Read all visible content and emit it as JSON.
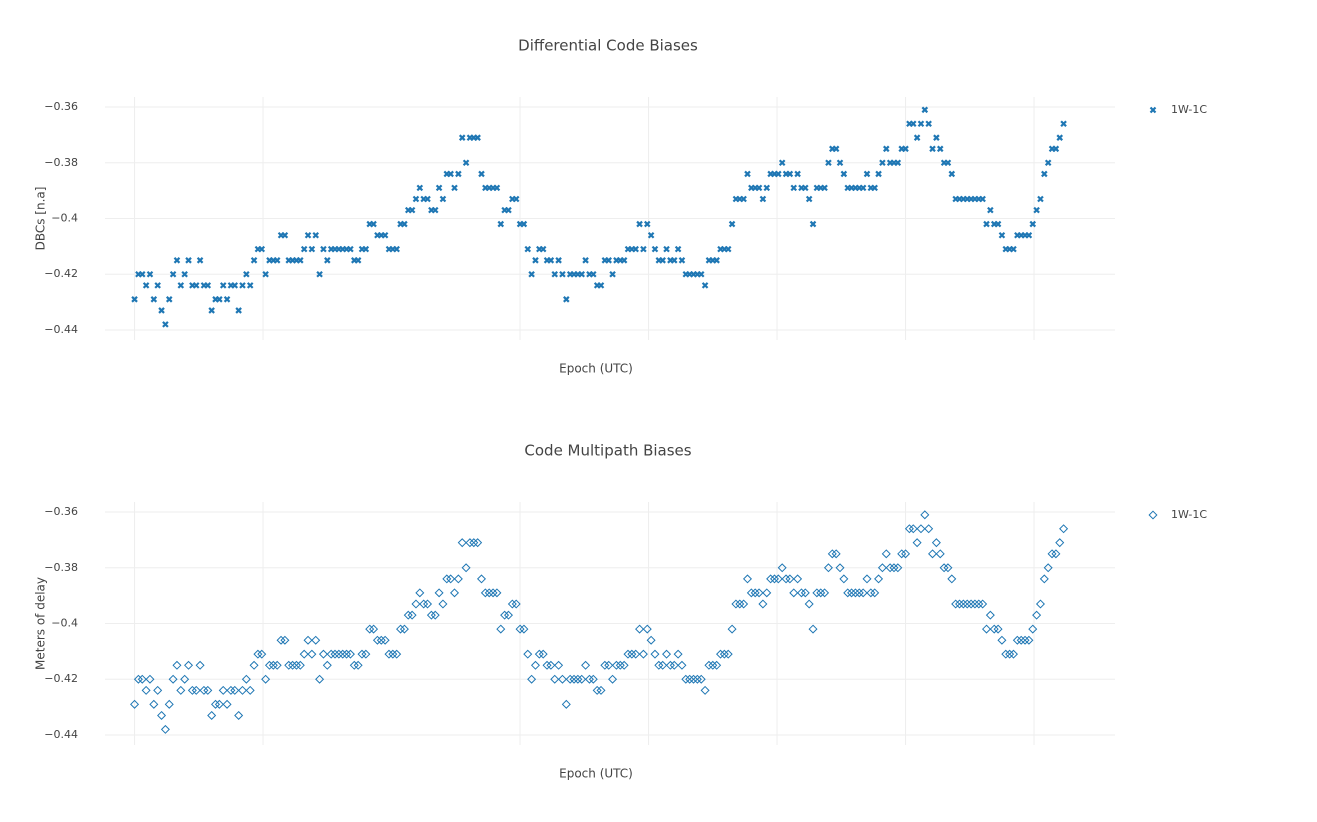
{
  "chart_data": [
    {
      "type": "scatter",
      "title": "Differential Code Biases",
      "xlabel": "Epoch (UTC)",
      "ylabel": "DBCs [n.a]",
      "ylim": [
        -0.4436,
        -0.3564
      ],
      "yticks": [
        {
          "value": -0.36,
          "label": "−0.36"
        },
        {
          "value": -0.38,
          "label": "−0.38"
        },
        {
          "value": -0.4,
          "label": "−0.4"
        },
        {
          "value": -0.42,
          "label": "−0.42"
        },
        {
          "value": -0.44,
          "label": "−0.44"
        }
      ],
      "xlim": [
        -0.23,
        7.63
      ],
      "xticks": [
        0,
        1,
        3,
        4,
        5,
        6,
        7
      ],
      "grid": true,
      "legend": "right",
      "x": [
        0,
        0.03,
        0.06,
        0.09,
        0.12,
        0.15,
        0.18,
        0.21,
        0.24,
        0.27,
        0.3,
        0.33,
        0.36,
        0.39,
        0.42,
        0.45,
        0.48,
        0.51,
        0.54,
        0.57,
        0.6,
        0.63,
        0.66,
        0.69,
        0.72,
        0.75,
        0.78,
        0.81,
        0.84,
        0.87,
        0.9,
        0.93,
        0.96,
        0.99,
        1.02,
        1.05,
        1.08,
        1.11,
        1.14,
        1.17,
        1.2,
        1.23,
        1.26,
        1.29,
        1.32,
        1.35,
        1.38,
        1.41,
        1.44,
        1.47,
        1.5,
        1.53,
        1.56,
        1.59,
        1.62,
        1.65,
        1.68,
        1.71,
        1.74,
        1.77,
        1.8,
        1.83,
        1.86,
        1.89,
        1.92,
        1.95,
        1.98,
        2.01,
        2.04,
        2.07,
        2.1,
        2.13,
        2.16,
        2.19,
        2.22,
        2.25,
        2.28,
        2.31,
        2.34,
        2.37,
        2.4,
        2.43,
        2.46,
        2.49,
        2.52,
        2.55,
        2.58,
        2.61,
        2.64,
        2.67,
        2.7,
        2.73,
        2.76,
        2.79,
        2.82,
        2.85,
        2.88,
        2.91,
        2.94,
        2.97,
        3,
        3.03,
        3.06,
        3.09,
        3.12,
        3.15,
        3.18,
        3.21,
        3.24,
        3.27,
        3.3,
        3.33,
        3.36,
        3.39,
        3.42,
        3.45,
        3.48,
        3.51,
        3.54,
        3.57,
        3.6,
        3.63,
        3.66,
        3.69,
        3.72,
        3.75,
        3.78,
        3.81,
        3.84,
        3.87,
        3.9,
        3.93,
        3.96,
        3.99,
        4.02,
        4.05,
        4.08,
        4.11,
        4.14,
        4.17,
        4.2,
        4.23,
        4.26,
        4.29,
        4.32,
        4.35,
        4.38,
        4.41,
        4.44,
        4.47,
        4.5,
        4.53,
        4.56,
        4.59,
        4.62,
        4.65,
        4.68,
        4.71,
        4.74,
        4.77,
        4.8,
        4.83,
        4.86,
        4.89,
        4.92,
        4.95,
        4.98,
        5.01,
        5.04,
        5.07,
        5.1,
        5.13,
        5.16,
        5.19,
        5.22,
        5.25,
        5.28,
        5.31,
        5.34,
        5.37,
        5.4,
        5.43,
        5.46,
        5.49,
        5.52,
        5.55,
        5.58,
        5.61,
        5.64,
        5.67,
        5.7,
        5.73,
        5.76,
        5.79,
        5.82,
        5.85,
        5.88,
        5.91,
        5.94,
        5.97,
        6,
        6.03,
        6.06,
        6.09,
        6.12,
        6.15,
        6.18,
        6.21,
        6.24,
        6.27,
        6.3,
        6.33,
        6.36,
        6.39,
        6.42,
        6.45,
        6.48,
        6.51,
        6.54,
        6.57,
        6.6,
        6.63,
        6.66,
        6.69,
        6.72,
        6.75,
        6.78,
        6.81,
        6.84,
        6.87,
        6.9,
        6.93,
        6.96,
        6.99,
        7.02,
        7.05,
        7.08,
        7.11,
        7.14,
        7.17,
        7.2,
        7.23
      ],
      "series": [
        {
          "name": "1W-1C",
          "color": "#1f77b4",
          "marker": "x",
          "values": [
            -0.429,
            -0.42,
            -0.42,
            -0.424,
            -0.42,
            -0.429,
            -0.424,
            -0.433,
            -0.438,
            -0.429,
            -0.42,
            -0.415,
            -0.424,
            -0.42,
            -0.415,
            -0.424,
            -0.424,
            -0.415,
            -0.424,
            -0.424,
            -0.433,
            -0.429,
            -0.429,
            -0.424,
            -0.429,
            -0.424,
            -0.424,
            -0.433,
            -0.424,
            -0.42,
            -0.424,
            -0.415,
            -0.411,
            -0.411,
            -0.42,
            -0.415,
            -0.415,
            -0.415,
            -0.406,
            -0.406,
            -0.415,
            -0.415,
            -0.415,
            -0.415,
            -0.411,
            -0.406,
            -0.411,
            -0.406,
            -0.42,
            -0.411,
            -0.415,
            -0.411,
            -0.411,
            -0.411,
            -0.411,
            -0.411,
            -0.411,
            -0.415,
            -0.415,
            -0.411,
            -0.411,
            -0.402,
            -0.402,
            -0.406,
            -0.406,
            -0.406,
            -0.411,
            -0.411,
            -0.411,
            -0.402,
            -0.402,
            -0.397,
            -0.397,
            -0.393,
            -0.389,
            -0.393,
            -0.393,
            -0.397,
            -0.397,
            -0.389,
            -0.393,
            -0.384,
            -0.384,
            -0.389,
            -0.384,
            -0.371,
            -0.38,
            -0.371,
            -0.371,
            -0.371,
            -0.384,
            -0.389,
            -0.389,
            -0.389,
            -0.389,
            -0.402,
            -0.397,
            -0.397,
            -0.393,
            -0.393,
            -0.402,
            -0.402,
            -0.411,
            -0.42,
            -0.415,
            -0.411,
            -0.411,
            -0.415,
            -0.415,
            -0.42,
            -0.415,
            -0.42,
            -0.429,
            -0.42,
            -0.42,
            -0.42,
            -0.42,
            -0.415,
            -0.42,
            -0.42,
            -0.424,
            -0.424,
            -0.415,
            -0.415,
            -0.42,
            -0.415,
            -0.415,
            -0.415,
            -0.411,
            -0.411,
            -0.411,
            -0.402,
            -0.411,
            -0.402,
            -0.406,
            -0.411,
            -0.415,
            -0.415,
            -0.411,
            -0.415,
            -0.415,
            -0.411,
            -0.415,
            -0.42,
            -0.42,
            -0.42,
            -0.42,
            -0.42,
            -0.424,
            -0.415,
            -0.415,
            -0.415,
            -0.411,
            -0.411,
            -0.411,
            -0.402,
            -0.393,
            -0.393,
            -0.393,
            -0.384,
            -0.389,
            -0.389,
            -0.389,
            -0.393,
            -0.389,
            -0.384,
            -0.384,
            -0.384,
            -0.38,
            -0.384,
            -0.384,
            -0.389,
            -0.384,
            -0.389,
            -0.389,
            -0.393,
            -0.402,
            -0.389,
            -0.389,
            -0.389,
            -0.38,
            -0.375,
            -0.375,
            -0.38,
            -0.384,
            -0.389,
            -0.389,
            -0.389,
            -0.389,
            -0.389,
            -0.384,
            -0.389,
            -0.389,
            -0.384,
            -0.38,
            -0.375,
            -0.38,
            -0.38,
            -0.38,
            -0.375,
            -0.375,
            -0.366,
            -0.366,
            -0.371,
            -0.366,
            -0.361,
            -0.366,
            -0.375,
            -0.371,
            -0.375,
            -0.38,
            -0.38,
            -0.384,
            -0.393,
            -0.393,
            -0.393,
            -0.393,
            -0.393,
            -0.393,
            -0.393,
            -0.393,
            -0.402,
            -0.397,
            -0.402,
            -0.402,
            -0.406,
            -0.411,
            -0.411,
            -0.411,
            -0.406,
            -0.406,
            -0.406,
            -0.406,
            -0.402,
            -0.397,
            -0.393,
            -0.384,
            -0.38,
            -0.375,
            -0.375,
            -0.371,
            -0.366
          ]
        }
      ]
    },
    {
      "type": "scatter",
      "title": "Code Multipath Biases",
      "xlabel": "Epoch (UTC)",
      "ylabel": "Meters of delay",
      "ylim": [
        -0.4436,
        -0.3564
      ],
      "yticks": [
        {
          "value": -0.36,
          "label": "−0.36"
        },
        {
          "value": -0.38,
          "label": "−0.38"
        },
        {
          "value": -0.4,
          "label": "−0.4"
        },
        {
          "value": -0.42,
          "label": "−0.42"
        },
        {
          "value": -0.44,
          "label": "−0.44"
        }
      ],
      "xlim": [
        -0.23,
        7.63
      ],
      "xticks": [
        0,
        1,
        3,
        4,
        5,
        6,
        7
      ],
      "grid": true,
      "legend": "right",
      "x": [
        0,
        0.03,
        0.06,
        0.09,
        0.12,
        0.15,
        0.18,
        0.21,
        0.24,
        0.27,
        0.3,
        0.33,
        0.36,
        0.39,
        0.42,
        0.45,
        0.48,
        0.51,
        0.54,
        0.57,
        0.6,
        0.63,
        0.66,
        0.69,
        0.72,
        0.75,
        0.78,
        0.81,
        0.84,
        0.87,
        0.9,
        0.93,
        0.96,
        0.99,
        1.02,
        1.05,
        1.08,
        1.11,
        1.14,
        1.17,
        1.2,
        1.23,
        1.26,
        1.29,
        1.32,
        1.35,
        1.38,
        1.41,
        1.44,
        1.47,
        1.5,
        1.53,
        1.56,
        1.59,
        1.62,
        1.65,
        1.68,
        1.71,
        1.74,
        1.77,
        1.8,
        1.83,
        1.86,
        1.89,
        1.92,
        1.95,
        1.98,
        2.01,
        2.04,
        2.07,
        2.1,
        2.13,
        2.16,
        2.19,
        2.22,
        2.25,
        2.28,
        2.31,
        2.34,
        2.37,
        2.4,
        2.43,
        2.46,
        2.49,
        2.52,
        2.55,
        2.58,
        2.61,
        2.64,
        2.67,
        2.7,
        2.73,
        2.76,
        2.79,
        2.82,
        2.85,
        2.88,
        2.91,
        2.94,
        2.97,
        3,
        3.03,
        3.06,
        3.09,
        3.12,
        3.15,
        3.18,
        3.21,
        3.24,
        3.27,
        3.3,
        3.33,
        3.36,
        3.39,
        3.42,
        3.45,
        3.48,
        3.51,
        3.54,
        3.57,
        3.6,
        3.63,
        3.66,
        3.69,
        3.72,
        3.75,
        3.78,
        3.81,
        3.84,
        3.87,
        3.9,
        3.93,
        3.96,
        3.99,
        4.02,
        4.05,
        4.08,
        4.11,
        4.14,
        4.17,
        4.2,
        4.23,
        4.26,
        4.29,
        4.32,
        4.35,
        4.38,
        4.41,
        4.44,
        4.47,
        4.5,
        4.53,
        4.56,
        4.59,
        4.62,
        4.65,
        4.68,
        4.71,
        4.74,
        4.77,
        4.8,
        4.83,
        4.86,
        4.89,
        4.92,
        4.95,
        4.98,
        5.01,
        5.04,
        5.07,
        5.1,
        5.13,
        5.16,
        5.19,
        5.22,
        5.25,
        5.28,
        5.31,
        5.34,
        5.37,
        5.4,
        5.43,
        5.46,
        5.49,
        5.52,
        5.55,
        5.58,
        5.61,
        5.64,
        5.67,
        5.7,
        5.73,
        5.76,
        5.79,
        5.82,
        5.85,
        5.88,
        5.91,
        5.94,
        5.97,
        6,
        6.03,
        6.06,
        6.09,
        6.12,
        6.15,
        6.18,
        6.21,
        6.24,
        6.27,
        6.3,
        6.33,
        6.36,
        6.39,
        6.42,
        6.45,
        6.48,
        6.51,
        6.54,
        6.57,
        6.6,
        6.63,
        6.66,
        6.69,
        6.72,
        6.75,
        6.78,
        6.81,
        6.84,
        6.87,
        6.9,
        6.93,
        6.96,
        6.99,
        7.02,
        7.05,
        7.08,
        7.11,
        7.14,
        7.17,
        7.2,
        7.23
      ],
      "series": [
        {
          "name": "1W-1C",
          "color": "#1f77b4",
          "marker": "diamond-open",
          "values": [
            -0.429,
            -0.42,
            -0.42,
            -0.424,
            -0.42,
            -0.429,
            -0.424,
            -0.433,
            -0.438,
            -0.429,
            -0.42,
            -0.415,
            -0.424,
            -0.42,
            -0.415,
            -0.424,
            -0.424,
            -0.415,
            -0.424,
            -0.424,
            -0.433,
            -0.429,
            -0.429,
            -0.424,
            -0.429,
            -0.424,
            -0.424,
            -0.433,
            -0.424,
            -0.42,
            -0.424,
            -0.415,
            -0.411,
            -0.411,
            -0.42,
            -0.415,
            -0.415,
            -0.415,
            -0.406,
            -0.406,
            -0.415,
            -0.415,
            -0.415,
            -0.415,
            -0.411,
            -0.406,
            -0.411,
            -0.406,
            -0.42,
            -0.411,
            -0.415,
            -0.411,
            -0.411,
            -0.411,
            -0.411,
            -0.411,
            -0.411,
            -0.415,
            -0.415,
            -0.411,
            -0.411,
            -0.402,
            -0.402,
            -0.406,
            -0.406,
            -0.406,
            -0.411,
            -0.411,
            -0.411,
            -0.402,
            -0.402,
            -0.397,
            -0.397,
            -0.393,
            -0.389,
            -0.393,
            -0.393,
            -0.397,
            -0.397,
            -0.389,
            -0.393,
            -0.384,
            -0.384,
            -0.389,
            -0.384,
            -0.371,
            -0.38,
            -0.371,
            -0.371,
            -0.371,
            -0.384,
            -0.389,
            -0.389,
            -0.389,
            -0.389,
            -0.402,
            -0.397,
            -0.397,
            -0.393,
            -0.393,
            -0.402,
            -0.402,
            -0.411,
            -0.42,
            -0.415,
            -0.411,
            -0.411,
            -0.415,
            -0.415,
            -0.42,
            -0.415,
            -0.42,
            -0.429,
            -0.42,
            -0.42,
            -0.42,
            -0.42,
            -0.415,
            -0.42,
            -0.42,
            -0.424,
            -0.424,
            -0.415,
            -0.415,
            -0.42,
            -0.415,
            -0.415,
            -0.415,
            -0.411,
            -0.411,
            -0.411,
            -0.402,
            -0.411,
            -0.402,
            -0.406,
            -0.411,
            -0.415,
            -0.415,
            -0.411,
            -0.415,
            -0.415,
            -0.411,
            -0.415,
            -0.42,
            -0.42,
            -0.42,
            -0.42,
            -0.42,
            -0.424,
            -0.415,
            -0.415,
            -0.415,
            -0.411,
            -0.411,
            -0.411,
            -0.402,
            -0.393,
            -0.393,
            -0.393,
            -0.384,
            -0.389,
            -0.389,
            -0.389,
            -0.393,
            -0.389,
            -0.384,
            -0.384,
            -0.384,
            -0.38,
            -0.384,
            -0.384,
            -0.389,
            -0.384,
            -0.389,
            -0.389,
            -0.393,
            -0.402,
            -0.389,
            -0.389,
            -0.389,
            -0.38,
            -0.375,
            -0.375,
            -0.38,
            -0.384,
            -0.389,
            -0.389,
            -0.389,
            -0.389,
            -0.389,
            -0.384,
            -0.389,
            -0.389,
            -0.384,
            -0.38,
            -0.375,
            -0.38,
            -0.38,
            -0.38,
            -0.375,
            -0.375,
            -0.366,
            -0.366,
            -0.371,
            -0.366,
            -0.361,
            -0.366,
            -0.375,
            -0.371,
            -0.375,
            -0.38,
            -0.38,
            -0.384,
            -0.393,
            -0.393,
            -0.393,
            -0.393,
            -0.393,
            -0.393,
            -0.393,
            -0.393,
            -0.402,
            -0.397,
            -0.402,
            -0.402,
            -0.406,
            -0.411,
            -0.411,
            -0.411,
            -0.406,
            -0.406,
            -0.406,
            -0.406,
            -0.402,
            -0.397,
            -0.393,
            -0.384,
            -0.38,
            -0.375,
            -0.375,
            -0.371,
            -0.366
          ]
        }
      ]
    }
  ]
}
